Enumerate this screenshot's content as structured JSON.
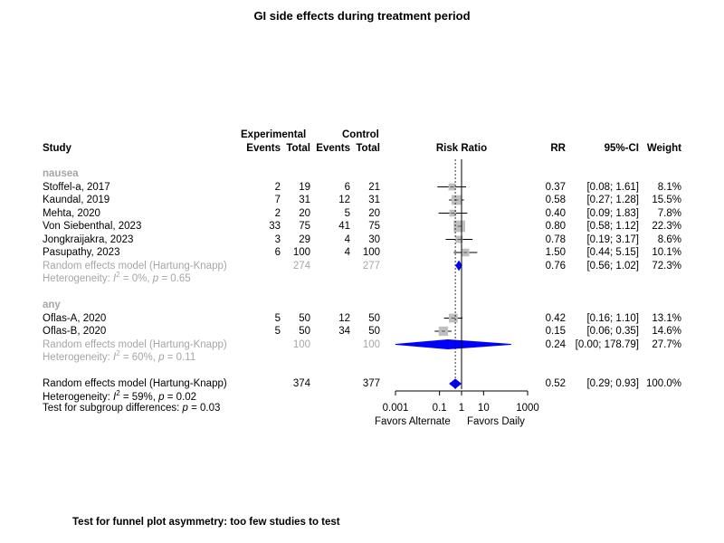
{
  "title": "GI side effects during treatment period",
  "headers": {
    "experimental": "Experimental",
    "control": "Control",
    "study": "Study",
    "events": "Events",
    "total": "Total",
    "risk_ratio": "Risk Ratio",
    "rr": "RR",
    "ci": "95%-CI",
    "weight": "Weight"
  },
  "axis": {
    "ticks": [
      "0.001",
      "0.1",
      "1",
      "10",
      "1000"
    ],
    "favors_left": "Favors Alternate",
    "favors_right": "Favors Daily"
  },
  "footer_note": "Test for funnel plot asymmetry: too few studies to test",
  "colors": {
    "diamond": "#0000ff",
    "square": "#bfbfbf",
    "model_text": "#a6a6a6"
  },
  "chart_data": {
    "type": "forest",
    "x_scale": "log",
    "xlim": [
      0.001,
      1000
    ],
    "reference_line": 1,
    "overall_dashed_line": 0.52,
    "subgroups": [
      {
        "name": "nausea",
        "studies": [
          {
            "study": "Stoffel-a, 2017",
            "e_events": "2",
            "e_total": "19",
            "c_events": "6",
            "c_total": "21",
            "rr": 0.37,
            "lo": 0.08,
            "hi": 1.61,
            "rr_text": "0.37",
            "ci_text": "[0.08;  1.61]",
            "weight": "8.1%"
          },
          {
            "study": "Kaundal, 2019",
            "e_events": "7",
            "e_total": "31",
            "c_events": "12",
            "c_total": "31",
            "rr": 0.58,
            "lo": 0.27,
            "hi": 1.28,
            "rr_text": "0.58",
            "ci_text": "[0.27;  1.28]",
            "weight": "15.5%"
          },
          {
            "study": "Mehta, 2020",
            "e_events": "2",
            "e_total": "20",
            "c_events": "5",
            "c_total": "20",
            "rr": 0.4,
            "lo": 0.09,
            "hi": 1.83,
            "rr_text": "0.40",
            "ci_text": "[0.09;  1.83]",
            "weight": "7.8%"
          },
          {
            "study": "Von Siebenthal, 2023",
            "e_events": "33",
            "e_total": "75",
            "c_events": "41",
            "c_total": "75",
            "rr": 0.8,
            "lo": 0.58,
            "hi": 1.12,
            "rr_text": "0.80",
            "ci_text": "[0.58;  1.12]",
            "weight": "22.3%"
          },
          {
            "study": "Jongkraijakra, 2023",
            "e_events": "3",
            "e_total": "29",
            "c_events": "4",
            "c_total": "30",
            "rr": 0.78,
            "lo": 0.19,
            "hi": 3.17,
            "rr_text": "0.78",
            "ci_text": "[0.19;  3.17]",
            "weight": "8.6%"
          },
          {
            "study": "Pasupathy, 2023",
            "e_events": "6",
            "e_total": "100",
            "c_events": "4",
            "c_total": "100",
            "rr": 1.5,
            "lo": 0.44,
            "hi": 5.15,
            "rr_text": "1.50",
            "ci_text": "[0.44;  5.15]",
            "weight": "10.1%"
          }
        ],
        "model": {
          "label": "Random effects model (Hartung-Knapp)",
          "e_total": "274",
          "c_total": "277",
          "rr": 0.76,
          "lo": 0.56,
          "hi": 1.02,
          "rr_text": "0.76",
          "ci_text": "[0.56;  1.02]",
          "weight": "72.3%"
        },
        "heterogeneity": {
          "prefix": "Heterogeneity: ",
          "var": "I",
          "exp": "2",
          "rest": " = 0%, ",
          "p_var": "p",
          "p_rest": " = 0.65"
        }
      },
      {
        "name": "any",
        "studies": [
          {
            "study": "Oflas-A, 2020",
            "e_events": "5",
            "e_total": "50",
            "c_events": "12",
            "c_total": "50",
            "rr": 0.42,
            "lo": 0.16,
            "hi": 1.1,
            "rr_text": "0.42",
            "ci_text": "[0.16;  1.10]",
            "weight": "13.1%"
          },
          {
            "study": "Oflas-B, 2020",
            "e_events": "5",
            "e_total": "50",
            "c_events": "34",
            "c_total": "50",
            "rr": 0.15,
            "lo": 0.06,
            "hi": 0.35,
            "rr_text": "0.15",
            "ci_text": "[0.06;  0.35]",
            "weight": "14.6%"
          }
        ],
        "model": {
          "label": "Random effects model (Hartung-Knapp)",
          "e_total": "100",
          "c_total": "100",
          "rr": 0.24,
          "lo": 0.00033,
          "hi": 178.79,
          "rr_text": "0.24",
          "ci_text": "[0.00; 178.79]",
          "weight": "27.7%"
        },
        "heterogeneity": {
          "prefix": "Heterogeneity: ",
          "var": "I",
          "exp": "2",
          "rest": " = 60%, ",
          "p_var": "p",
          "p_rest": " = 0.11"
        }
      }
    ],
    "overall": {
      "model": {
        "label": "Random effects model (Hartung-Knapp)",
        "e_total": "374",
        "c_total": "377",
        "rr": 0.52,
        "lo": 0.29,
        "hi": 0.93,
        "rr_text": "0.52",
        "ci_text": "[0.29;  0.93]",
        "weight": "100.0%"
      },
      "heterogeneity": {
        "prefix": "Heterogeneity: ",
        "var": "I",
        "exp": "2",
        "rest": " = 59%, ",
        "p_var": "p",
        "p_rest": " = 0.02"
      },
      "subgroup_test": {
        "prefix": "Test for subgroup differences:  ",
        "p_var": "p",
        "p_rest": " = 0.03"
      }
    }
  }
}
